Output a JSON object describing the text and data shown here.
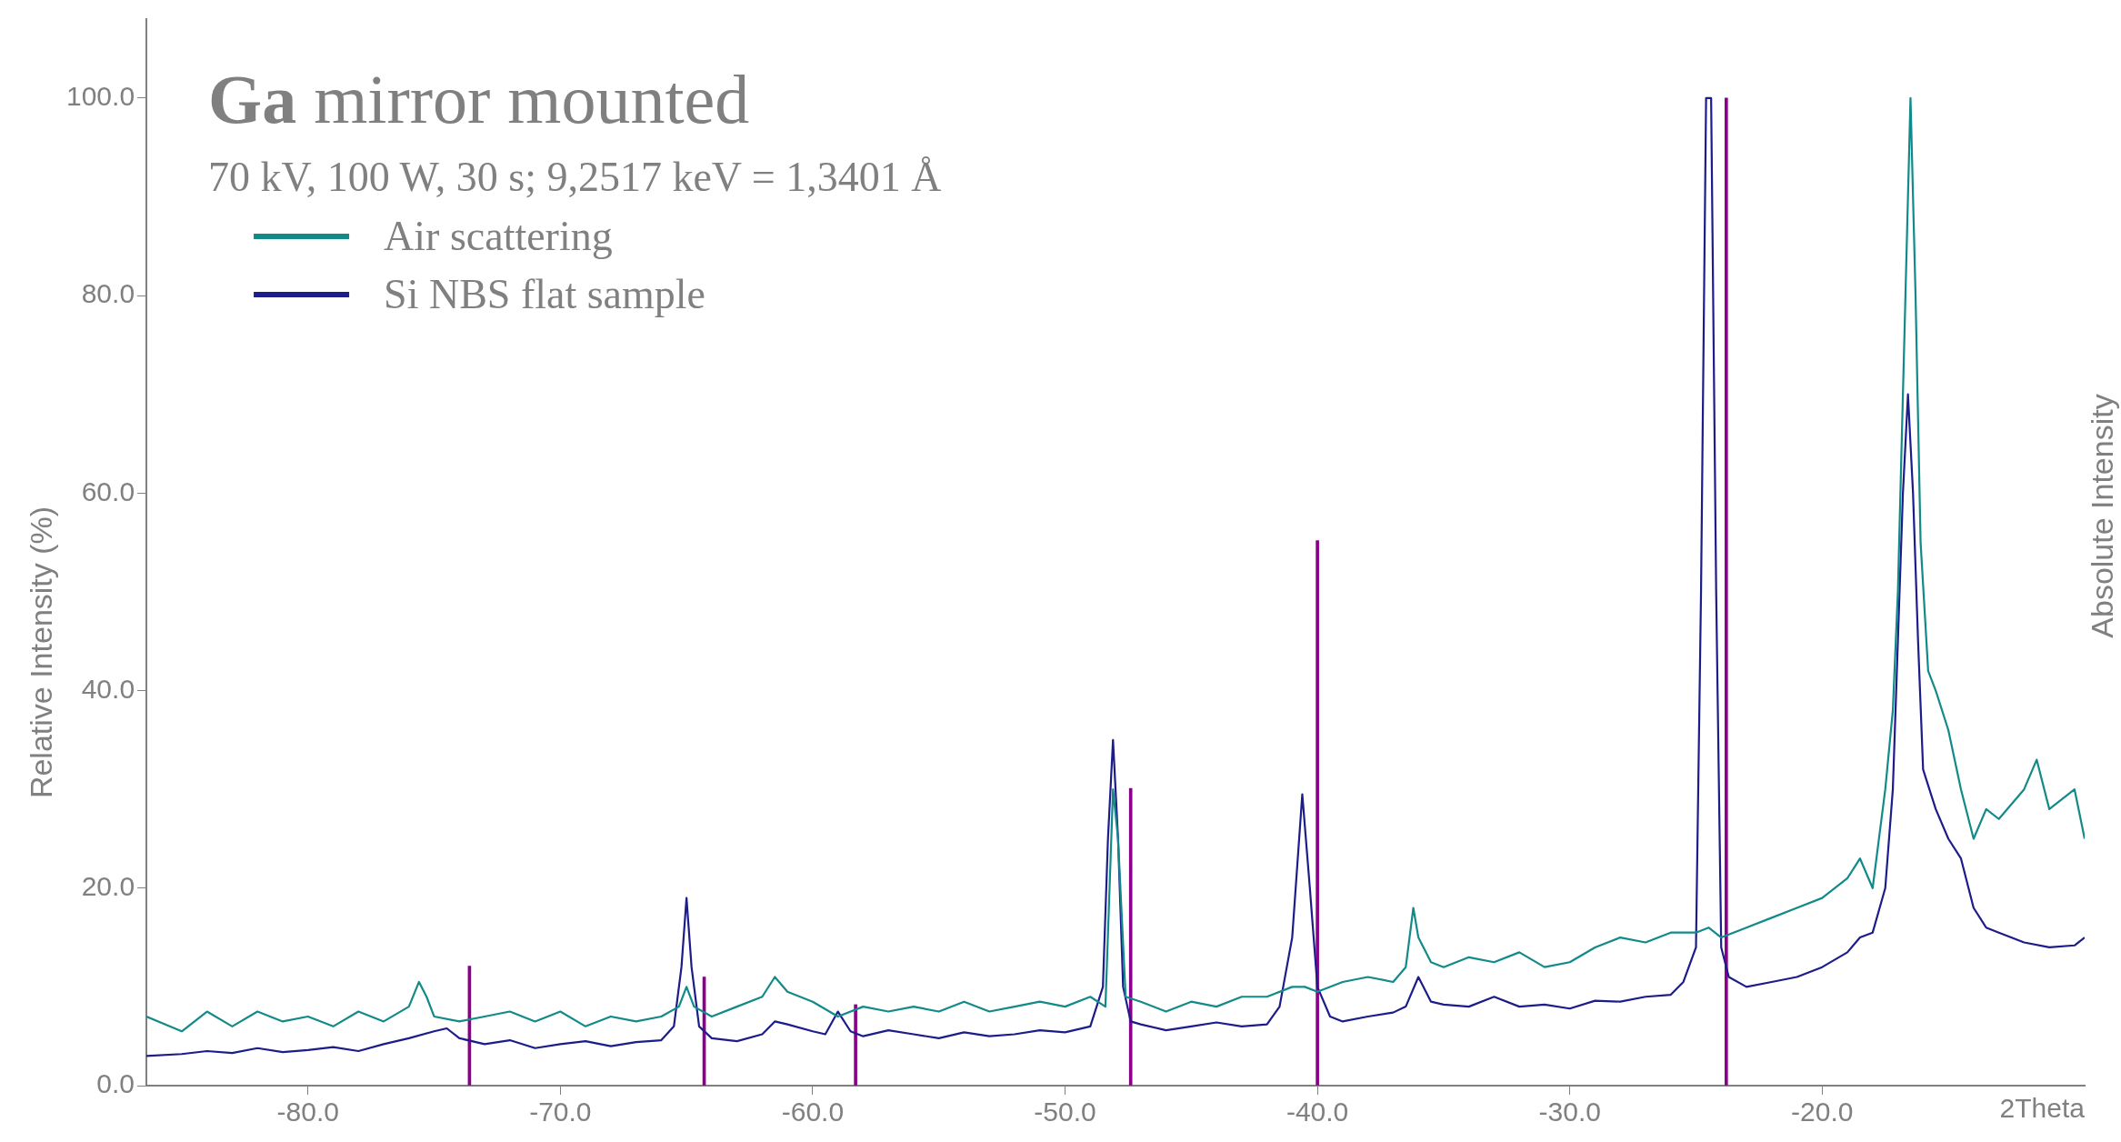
{
  "chart_data": {
    "type": "line",
    "title": "Ga mirror mounted",
    "subtitle": "70 kV, 100 W, 30 s; 9,2517 keV = 1,3401 Å",
    "xlabel": "2Theta",
    "ylabel": "Relative Intensity (%)",
    "y2label": "Absolute Intensity",
    "legend": "top left",
    "grid": false,
    "marker": "none",
    "line_style": "solid",
    "xlim": [
      -86.4,
      -9.6
    ],
    "ylim": [
      0,
      108
    ],
    "xticks": [
      {
        "value": -80,
        "label": "-80.0"
      },
      {
        "value": -70,
        "label": "-70.0"
      },
      {
        "value": -60,
        "label": "-60.0"
      },
      {
        "value": -50,
        "label": "-50.0"
      },
      {
        "value": -40,
        "label": "-40.0"
      },
      {
        "value": -30,
        "label": "-30.0"
      },
      {
        "value": -20,
        "label": "-20.0"
      }
    ],
    "yticks": [
      {
        "value": 0,
        "label": "0.0"
      },
      {
        "value": 20,
        "label": "20.0"
      },
      {
        "value": 40,
        "label": "40.0"
      },
      {
        "value": 60,
        "label": "60.0"
      },
      {
        "value": 80,
        "label": "80.0"
      },
      {
        "value": 100,
        "label": "100.0"
      }
    ],
    "series": [
      {
        "name": "Air scattering",
        "color": "#138a8a",
        "x": [
          -86.4,
          -85,
          -84,
          -83,
          -82,
          -81,
          -80,
          -79,
          -78,
          -77,
          -76,
          -75.6,
          -75.3,
          -75,
          -74,
          -73,
          -72,
          -71,
          -70,
          -69,
          -68,
          -67,
          -66,
          -65.3,
          -65,
          -64.7,
          -64,
          -63,
          -62,
          -61.5,
          -61,
          -60,
          -59,
          -58,
          -57,
          -56,
          -55,
          -54,
          -53,
          -52,
          -51,
          -50,
          -49,
          -48.4,
          -48.1,
          -47.9,
          -47.6,
          -47,
          -46,
          -45,
          -44,
          -43,
          -42,
          -41,
          -40.5,
          -40,
          -39,
          -38,
          -37,
          -36.5,
          -36.2,
          -36,
          -35.5,
          -35,
          -34,
          -33,
          -32,
          -31,
          -30,
          -29,
          -28,
          -27,
          -26,
          -25,
          -24.5,
          -24,
          -23,
          -22,
          -21,
          -20,
          -19,
          -18.5,
          -18,
          -17.5,
          -17.2,
          -17,
          -16.7,
          -16.5,
          -16.3,
          -16.1,
          -15.8,
          -15.5,
          -15,
          -14.5,
          -14,
          -13.5,
          -13,
          -12,
          -11.5,
          -11,
          -10,
          -9.6
        ],
        "values": [
          7,
          5.5,
          7.5,
          6,
          7.5,
          6.5,
          7,
          6,
          7.5,
          6.5,
          8,
          10.5,
          9,
          7,
          6.5,
          7,
          7.5,
          6.5,
          7.5,
          6,
          7,
          6.5,
          7,
          8,
          10,
          8,
          7,
          8,
          9,
          11,
          9.5,
          8.5,
          7,
          8,
          7.5,
          8,
          7.5,
          8.5,
          7.5,
          8,
          8.5,
          8,
          9,
          8,
          30,
          25,
          9,
          8.5,
          7.5,
          8.5,
          8,
          9,
          9,
          10,
          10,
          9.5,
          10.5,
          11,
          10.5,
          12,
          18,
          15,
          12.5,
          12,
          13,
          12.5,
          13.5,
          12,
          12.5,
          14,
          15,
          14.5,
          15.5,
          15.5,
          16,
          15,
          16,
          17,
          18,
          19,
          21,
          23,
          20,
          30,
          38,
          50,
          80,
          100,
          80,
          55,
          42,
          40,
          36,
          30,
          25,
          28,
          27,
          30,
          33,
          28,
          30,
          25
        ]
      },
      {
        "name": "Si NBS flat sample",
        "color": "#1c1c8a",
        "x": [
          -86.4,
          -85,
          -84,
          -83,
          -82,
          -81,
          -80,
          -79,
          -78,
          -77,
          -76,
          -75,
          -74.5,
          -74,
          -73,
          -72,
          -71,
          -70,
          -69,
          -68,
          -67,
          -66,
          -65.5,
          -65.2,
          -65,
          -64.8,
          -64.5,
          -64,
          -63,
          -62,
          -61.5,
          -61,
          -60,
          -59.5,
          -59,
          -58.5,
          -58,
          -57,
          -56,
          -55,
          -54,
          -53,
          -52,
          -51,
          -50,
          -49,
          -48.5,
          -48.3,
          -48.1,
          -47.9,
          -47.7,
          -47.4,
          -47,
          -46,
          -45,
          -44,
          -43,
          -42,
          -41.5,
          -41,
          -40.6,
          -40.3,
          -40,
          -39.5,
          -39,
          -38,
          -37,
          -36.5,
          -36,
          -35.5,
          -35,
          -34,
          -33,
          -32,
          -31,
          -30,
          -29,
          -28,
          -27,
          -26,
          -25.5,
          -25,
          -24.8,
          -24.6,
          -24.4,
          -24.2,
          -24,
          -23.7,
          -23,
          -22,
          -21,
          -20,
          -19,
          -18.5,
          -18,
          -17.5,
          -17.2,
          -17,
          -16.8,
          -16.6,
          -16.4,
          -16.2,
          -16,
          -15.5,
          -15,
          -14.5,
          -14,
          -13.5,
          -13,
          -12,
          -11,
          -10,
          -9.6
        ],
        "values": [
          3,
          3.2,
          3.5,
          3.3,
          3.8,
          3.4,
          3.6,
          3.9,
          3.5,
          4.2,
          4.8,
          5.5,
          5.8,
          4.8,
          4.2,
          4.6,
          3.8,
          4.2,
          4.5,
          4,
          4.4,
          4.6,
          6,
          12,
          19,
          12,
          6,
          4.8,
          4.5,
          5.2,
          6.5,
          6.2,
          5.5,
          5.2,
          7.5,
          5.5,
          5,
          5.6,
          5.2,
          4.8,
          5.4,
          5,
          5.2,
          5.6,
          5.4,
          6,
          10,
          25,
          35,
          25,
          10,
          6.5,
          6.2,
          5.6,
          6,
          6.4,
          6,
          6.2,
          8,
          15,
          29.5,
          20,
          10,
          7,
          6.5,
          7,
          7.4,
          8,
          11,
          8.5,
          8.2,
          8,
          9,
          8,
          8.2,
          7.8,
          8.6,
          8.5,
          9,
          9.2,
          10.5,
          14,
          50,
          100,
          100,
          50,
          14,
          11,
          10,
          10.5,
          11,
          12,
          13.5,
          15,
          15.5,
          20,
          30,
          45,
          60,
          70,
          60,
          45,
          32,
          28,
          25,
          23,
          18,
          16,
          15.5,
          14.5,
          14,
          14.2,
          15
        ]
      },
      {
        "type": "bar",
        "color": "#8b008b",
        "x": [
          -73.6,
          -64.3,
          -58.3,
          -47.4,
          -40,
          -23.8
        ],
        "values": [
          12.1,
          11,
          8.2,
          30.1,
          55.2,
          100
        ]
      }
    ]
  }
}
